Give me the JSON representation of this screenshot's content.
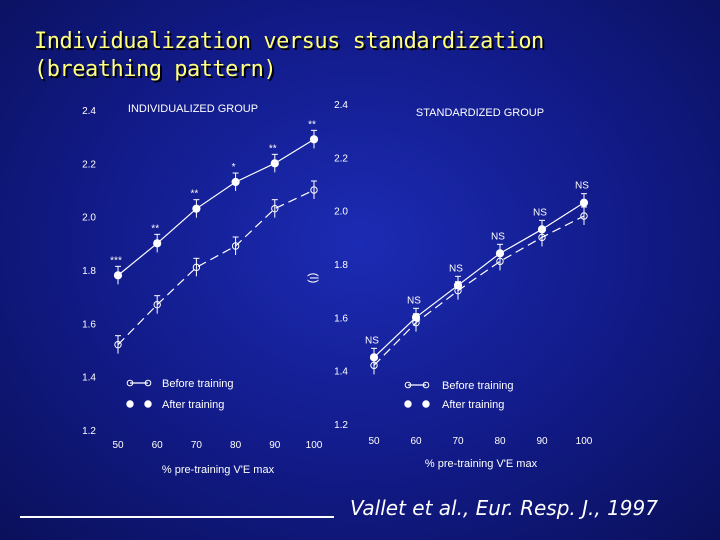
{
  "slide": {
    "title_line1": "Individualization versus standardization",
    "title_line2": "(breathing pattern)",
    "citation": "Vallet et al., Eur. Resp. J., 1997"
  },
  "colors": {
    "background": "#111a86",
    "title": "#ffff80",
    "marks": "#ffffff",
    "text": "#ffffff"
  },
  "chart_data": [
    {
      "type": "line",
      "title": "INDIVIDUALIZED GROUP",
      "xlabel": "% pre-training V'E max",
      "ylabel": "",
      "xlim": [
        50,
        100
      ],
      "ylim": [
        1.2,
        2.4
      ],
      "xticks": [
        "50",
        "60",
        "70",
        "80",
        "90",
        "100"
      ],
      "yticks": [
        "1.2",
        "1.4",
        "1.6",
        "1.8",
        "2.0",
        "2.2",
        "2.4"
      ],
      "series": [
        {
          "name": "Before training",
          "marker": "open-circle",
          "style": "dashed",
          "x": [
            50,
            60,
            70,
            80,
            90,
            100
          ],
          "y": [
            1.52,
            1.67,
            1.81,
            1.89,
            2.03,
            2.1
          ]
        },
        {
          "name": "After training",
          "marker": "filled-circle",
          "style": "solid",
          "x": [
            50,
            60,
            70,
            80,
            90,
            100
          ],
          "y": [
            1.78,
            1.9,
            2.03,
            2.13,
            2.2,
            2.29
          ]
        }
      ],
      "annotations": [
        {
          "x": 50,
          "text": "***"
        },
        {
          "x": 60,
          "text": "**"
        },
        {
          "x": 70,
          "text": "**"
        },
        {
          "x": 80,
          "text": "*"
        },
        {
          "x": 90,
          "text": "**"
        },
        {
          "x": 100,
          "text": "**"
        }
      ]
    },
    {
      "type": "line",
      "title": "STANDARDIZED GROUP",
      "xlabel": "% pre-training V'E max",
      "ylabel": "(l)",
      "xlim": [
        50,
        100
      ],
      "ylim": [
        1.2,
        2.4
      ],
      "xticks": [
        "50",
        "60",
        "70",
        "80",
        "90",
        "100"
      ],
      "yticks": [
        "1.2",
        "1.4",
        "1.6",
        "1.8",
        "2.0",
        "2.2",
        "2.4"
      ],
      "series": [
        {
          "name": "Before training",
          "marker": "open-circle",
          "style": "dashed",
          "x": [
            50,
            60,
            70,
            80,
            90,
            100
          ],
          "y": [
            1.42,
            1.58,
            1.7,
            1.81,
            1.9,
            1.98
          ]
        },
        {
          "name": "After training",
          "marker": "filled-circle",
          "style": "solid",
          "x": [
            50,
            60,
            70,
            80,
            90,
            100
          ],
          "y": [
            1.45,
            1.6,
            1.72,
            1.84,
            1.93,
            2.03
          ]
        }
      ],
      "annotations": [
        {
          "x": 50,
          "text": "NS"
        },
        {
          "x": 60,
          "text": "NS"
        },
        {
          "x": 70,
          "text": "NS"
        },
        {
          "x": 80,
          "text": "NS"
        },
        {
          "x": 90,
          "text": "NS"
        },
        {
          "x": 100,
          "text": "NS"
        }
      ]
    }
  ]
}
